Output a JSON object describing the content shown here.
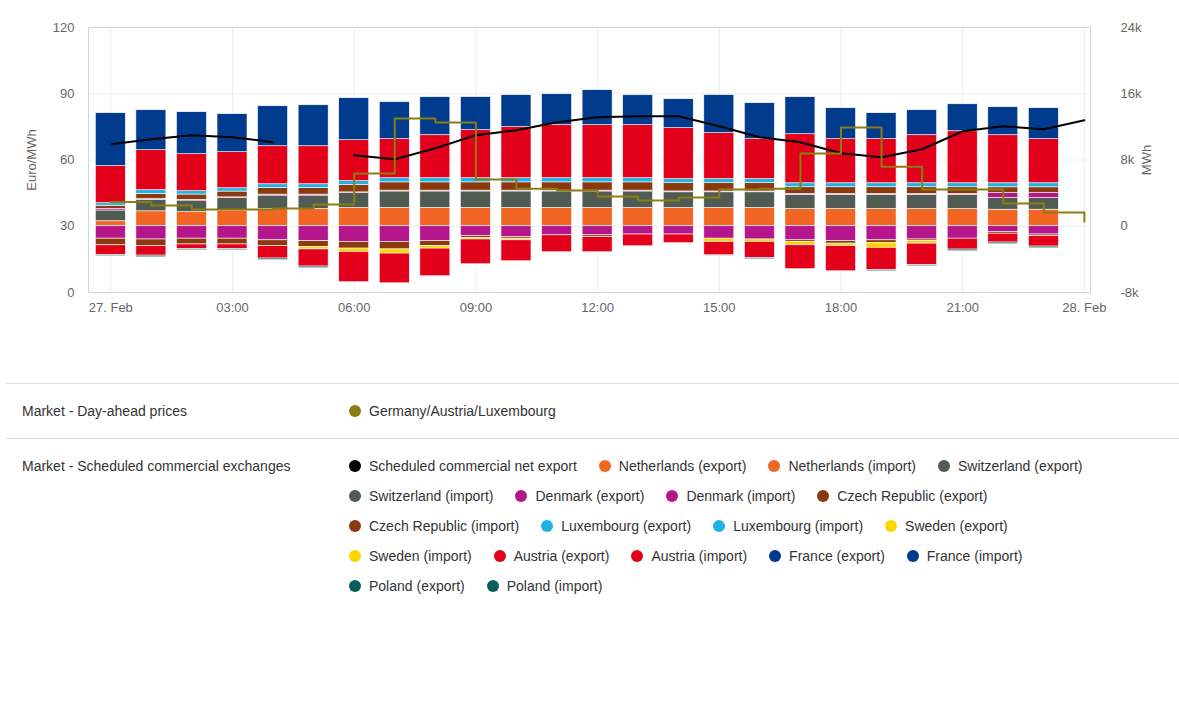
{
  "chart_data": {
    "type": "bar",
    "stacked": true,
    "grid": true,
    "legend": "bottom",
    "x": [
      0,
      1,
      2,
      3,
      4,
      5,
      6,
      7,
      8,
      9,
      10,
      11,
      12,
      13,
      14,
      15,
      16,
      17,
      18,
      19,
      20,
      21,
      22,
      23,
      24
    ],
    "xlim": [
      -0.55,
      24.15
    ],
    "xticks": [
      {
        "value": 0,
        "label": "27. Feb"
      },
      {
        "value": 3,
        "label": "03:00"
      },
      {
        "value": 6,
        "label": "06:00"
      },
      {
        "value": 9,
        "label": "09:00"
      },
      {
        "value": 12,
        "label": "12:00"
      },
      {
        "value": 15,
        "label": "15:00"
      },
      {
        "value": 18,
        "label": "18:00"
      },
      {
        "value": 21,
        "label": "21:00"
      },
      {
        "value": 24,
        "label": "28. Feb"
      }
    ],
    "ylabel": "Euro/MWh",
    "ylim": [
      0,
      120
    ],
    "yticks": [
      0,
      30,
      60,
      90,
      120
    ],
    "y2label": "MWh",
    "y2lim": [
      -8000,
      24000
    ],
    "y2ticks": [
      {
        "value": -8000,
        "label": "-8k"
      },
      0,
      {
        "value": 8000,
        "label": "8k"
      },
      {
        "value": 16000,
        "label": "16k"
      },
      {
        "value": 24000,
        "label": "24k"
      }
    ],
    "series": [
      {
        "name": "Germany/Austria/Luxembourg",
        "group": "Market - Day-ahead prices",
        "type": "line",
        "line_style": "step",
        "color": "#8b7d12",
        "values": [
          41,
          39.4,
          37.6,
          37.6,
          38,
          39.9,
          53.9,
          78.8,
          77,
          51.2,
          47,
          46.2,
          43.5,
          41.7,
          43,
          46.6,
          47,
          63,
          74.7,
          57,
          46.6,
          46.6,
          40.3,
          36.2,
          32
        ]
      },
      {
        "name": "Scheduled commercial net export",
        "group": "Market - Scheduled commercial exchanges",
        "type": "line",
        "axis": "y2",
        "color": "#000000",
        "values": [
          9900,
          10500,
          11000,
          10750,
          10150,
          null,
          8570,
          8090,
          9420,
          11000,
          11590,
          12560,
          13160,
          13280,
          13280,
          12080,
          10750,
          10150,
          8810,
          8330,
          9300,
          11470,
          12080,
          11710,
          12800
        ]
      },
      {
        "name": "Netherlands (export)",
        "group": "Market - Scheduled commercial exchanges",
        "type": "bar",
        "axis": "y2",
        "color": "#f26522",
        "values": [
          600,
          1800,
          1700,
          1900,
          2100,
          2100,
          2200,
          2200,
          2200,
          2200,
          2200,
          2200,
          2200,
          2200,
          2200,
          2200,
          2200,
          2100,
          2100,
          2100,
          2100,
          2100,
          2000,
          2000,
          null
        ]
      },
      {
        "name": "Netherlands (import)",
        "group": "Market - Scheduled commercial exchanges",
        "type": "bar",
        "axis": "y2",
        "color": "#f26522",
        "values": [
          0,
          0,
          0,
          0,
          0,
          0,
          0,
          0,
          0,
          0,
          0,
          0,
          0,
          0,
          0,
          0,
          0,
          0,
          0,
          0,
          0,
          0,
          0,
          0,
          null
        ]
      },
      {
        "name": "Switzerland (export)",
        "group": "Market - Scheduled commercial exchanges",
        "type": "bar",
        "axis": "y2",
        "color": "#4f5b53",
        "values": [
          1300,
          1400,
          1400,
          1500,
          1600,
          1600,
          1800,
          2000,
          2000,
          2000,
          2000,
          2000,
          2000,
          2000,
          1900,
          1900,
          1900,
          1700,
          1700,
          1700,
          1700,
          1700,
          1400,
          1400,
          null
        ]
      },
      {
        "name": "Switzerland (import)",
        "group": "Market - Scheduled commercial exchanges",
        "type": "bar",
        "axis": "y2",
        "color": "#4f5b53",
        "values": [
          0,
          0,
          0,
          0,
          0,
          0,
          0,
          0,
          0,
          0,
          0,
          0,
          0,
          0,
          0,
          0,
          0,
          0,
          0,
          0,
          0,
          0,
          0,
          0,
          null
        ]
      },
      {
        "name": "Denmark (export)",
        "group": "Market - Scheduled commercial exchanges",
        "type": "bar",
        "axis": "y2",
        "color": "#b5168c",
        "values": [
          180,
          100,
          80,
          90,
          120,
          120,
          90,
          100,
          100,
          100,
          100,
          100,
          100,
          100,
          100,
          100,
          100,
          110,
          110,
          110,
          110,
          110,
          600,
          600,
          null
        ]
      },
      {
        "name": "Denmark (import)",
        "group": "Market - Scheduled commercial exchanges",
        "type": "bar",
        "axis": "y2",
        "color": "#b5168c",
        "values": [
          -1500,
          -1600,
          -1500,
          -1500,
          -1700,
          -1800,
          -1900,
          -1900,
          -1800,
          -1200,
          -1300,
          -1100,
          -1100,
          -1000,
          -1000,
          -1500,
          -1600,
          -1700,
          -1800,
          -1700,
          -1600,
          -1500,
          -700,
          -1000,
          null
        ]
      },
      {
        "name": "Czech Republic (export)",
        "group": "Market - Scheduled commercial exchanges",
        "type": "bar",
        "axis": "y2",
        "color": "#8b3a0f",
        "values": [
          400,
          600,
          650,
          700,
          800,
          800,
          900,
          1000,
          1000,
          1000,
          1000,
          1000,
          1000,
          1000,
          1000,
          1000,
          1000,
          800,
          800,
          800,
          800,
          800,
          700,
          700,
          null
        ]
      },
      {
        "name": "Czech Republic (import)",
        "group": "Market - Scheduled commercial exchanges",
        "type": "bar",
        "axis": "y2",
        "color": "#8b3a0f",
        "values": [
          -800,
          -800,
          -700,
          -700,
          -700,
          -700,
          -800,
          -900,
          -600,
          -200,
          -200,
          0,
          -200,
          0,
          0,
          0,
          0,
          -200,
          -300,
          -300,
          -200,
          0,
          -200,
          -200,
          null
        ]
      },
      {
        "name": "Luxembourg (export)",
        "group": "Market - Scheduled commercial exchanges",
        "type": "bar",
        "axis": "y2",
        "color": "#1fb3e5",
        "values": [
          300,
          450,
          400,
          400,
          450,
          450,
          450,
          500,
          500,
          500,
          500,
          500,
          500,
          500,
          480,
          480,
          480,
          480,
          480,
          480,
          480,
          480,
          490,
          490,
          null
        ]
      },
      {
        "name": "Luxembourg (import)",
        "group": "Market - Scheduled commercial exchanges",
        "type": "bar",
        "axis": "y2",
        "color": "#1fb3e5",
        "values": [
          0,
          0,
          0,
          0,
          0,
          0,
          0,
          0,
          0,
          0,
          0,
          0,
          0,
          0,
          0,
          0,
          0,
          0,
          0,
          0,
          0,
          0,
          0,
          0,
          null
        ]
      },
      {
        "name": "Sweden (export)",
        "group": "Market - Scheduled commercial exchanges",
        "type": "bar",
        "axis": "y2",
        "color": "#ffd500",
        "values": [
          0,
          0,
          0,
          0,
          0,
          0,
          0,
          0,
          0,
          0,
          0,
          0,
          0,
          0,
          0,
          0,
          0,
          0,
          0,
          0,
          0,
          0,
          0,
          0,
          null
        ]
      },
      {
        "name": "Sweden (import)",
        "group": "Market - Scheduled commercial exchanges",
        "type": "bar",
        "axis": "y2",
        "color": "#ffd500",
        "values": [
          0,
          0,
          0,
          0,
          0,
          -300,
          -400,
          -500,
          -300,
          -200,
          -200,
          0,
          0,
          0,
          0,
          -400,
          -300,
          -400,
          -300,
          -600,
          -300,
          0,
          0,
          0,
          null
        ]
      },
      {
        "name": "Austria (export)",
        "group": "Market - Scheduled commercial exchanges",
        "type": "bar",
        "axis": "y2",
        "color": "#e2001a",
        "values": [
          4470,
          4830,
          4470,
          4350,
          4590,
          4590,
          4950,
          4710,
          5190,
          5800,
          6160,
          6400,
          6400,
          6400,
          6160,
          5560,
          4830,
          5920,
          5320,
          5320,
          5800,
          6280,
          5800,
          5320,
          null
        ]
      },
      {
        "name": "Austria (import)",
        "group": "Market - Scheduled commercial exchanges",
        "type": "bar",
        "axis": "y2",
        "color": "#e2001a",
        "values": [
          -1170,
          -1150,
          -550,
          -550,
          -1500,
          -2070,
          -3660,
          -3590,
          -3340,
          -2990,
          -2530,
          -2040,
          -1840,
          -1420,
          -1050,
          -1620,
          -1940,
          -2890,
          -3040,
          -2690,
          -2580,
          -1320,
          -1070,
          -1260,
          null
        ]
      },
      {
        "name": "France (export)",
        "group": "Market - Scheduled commercial exchanges",
        "type": "bar",
        "axis": "y2",
        "color": "#003b8e",
        "values": [
          6400,
          4830,
          5070,
          4590,
          4830,
          4950,
          5070,
          4470,
          4590,
          3990,
          3870,
          3740,
          4230,
          3620,
          3500,
          4590,
          4350,
          4470,
          3740,
          3140,
          3020,
          3260,
          3380,
          3740,
          null
        ]
      },
      {
        "name": "France (import)",
        "group": "Market - Scheduled commercial exchanges",
        "type": "bar",
        "axis": "y2",
        "color": "#003b8e",
        "values": [
          0,
          0,
          0,
          0,
          0,
          0,
          0,
          0,
          0,
          0,
          0,
          0,
          0,
          0,
          0,
          0,
          0,
          0,
          0,
          0,
          0,
          0,
          0,
          0,
          null
        ]
      },
      {
        "name": "Poland (export)",
        "group": "Market - Scheduled commercial exchanges",
        "type": "bar",
        "axis": "y2",
        "color": "#0b5c5c",
        "values": [
          0,
          0,
          0,
          0,
          0,
          0,
          0,
          0,
          0,
          0,
          0,
          0,
          0,
          0,
          0,
          0,
          0,
          0,
          0,
          0,
          0,
          0,
          0,
          0,
          null
        ]
      },
      {
        "name": "Poland (import)",
        "group": "Market - Scheduled commercial exchanges",
        "type": "bar",
        "axis": "y2",
        "color": "#0b5c5c",
        "values": [
          -150,
          -200,
          -150,
          -150,
          -200,
          -200,
          0,
          0,
          0,
          0,
          0,
          0,
          0,
          0,
          0,
          -100,
          -150,
          0,
          0,
          -150,
          -150,
          -200,
          -200,
          -200,
          null
        ]
      }
    ]
  }
}
